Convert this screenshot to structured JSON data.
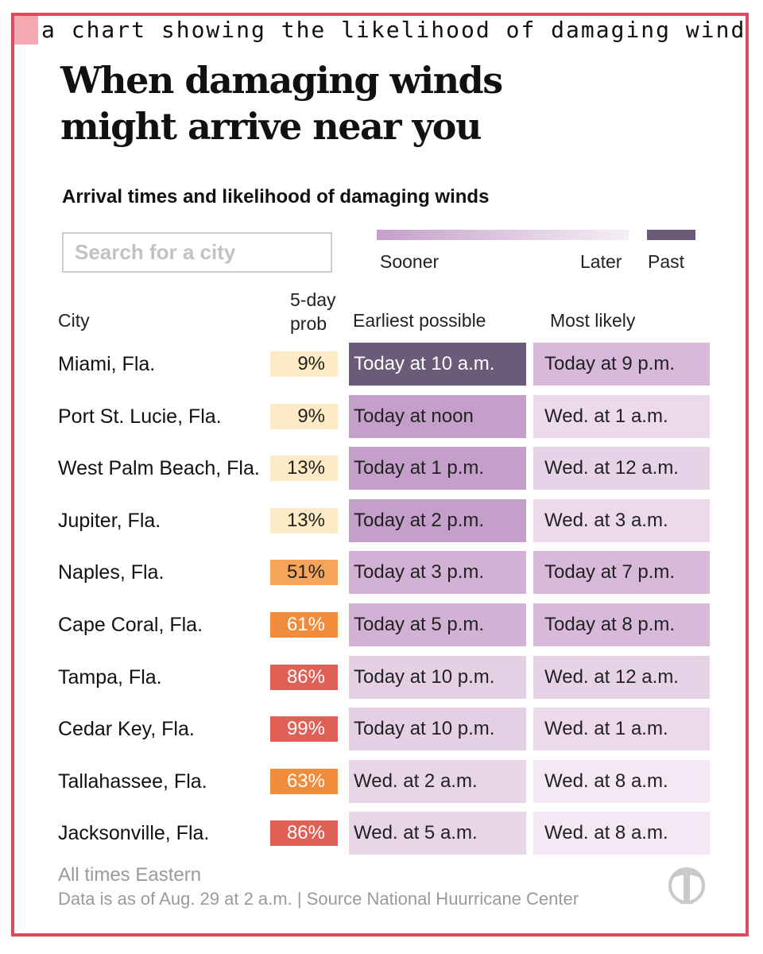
{
  "caption": "a chart showing the likelihood of damaging winds fo",
  "title": "When damaging winds might arrive near you",
  "subtitle": "Arrival times and likelihood of damaging winds",
  "search": {
    "placeholder": "Search for a city"
  },
  "legend": {
    "sooner": "Sooner",
    "later": "Later",
    "past": "Past"
  },
  "colors": {
    "frame": "#e04a5c",
    "past": "#6b5a78",
    "gradient_start": "#c5a0ca",
    "gradient_end": "#f6eef6"
  },
  "columns": {
    "city": "City",
    "prob_line1": "5-day",
    "prob_line2": "prob",
    "earliest": "Earliest possible",
    "likely": "Most likely"
  },
  "rows": [
    {
      "city": "Miami, Fla.",
      "prob": "9%",
      "prob_bg": "#fcebc4",
      "prob_fg": "#222222",
      "earliest": "Today at 10 a.m.",
      "earliest_bg": "#6b5a78",
      "earliest_fg": "#ffffff",
      "likely": "Today at 9 p.m.",
      "likely_bg": "#d8b9da"
    },
    {
      "city": "Port St. Lucie, Fla.",
      "prob": "9%",
      "prob_bg": "#fcebc4",
      "prob_fg": "#222222",
      "earliest": "Today at noon",
      "earliest_bg": "#c49fc9",
      "earliest_fg": "#222222",
      "likely": "Wed. at 1 a.m.",
      "likely_bg": "#ecdaec"
    },
    {
      "city": "West Palm Beach, Fla.",
      "prob": "13%",
      "prob_bg": "#fcebc4",
      "prob_fg": "#222222",
      "earliest": "Today at 1 p.m.",
      "earliest_bg": "#c49fc9",
      "earliest_fg": "#222222",
      "likely": "Wed. at 12 a.m.",
      "likely_bg": "#e7d3e8"
    },
    {
      "city": "Jupiter, Fla.",
      "prob": "13%",
      "prob_bg": "#fcebc4",
      "prob_fg": "#222222",
      "earliest": "Today at 2 p.m.",
      "earliest_bg": "#c49fc9",
      "earliest_fg": "#222222",
      "likely": "Wed. at 3 a.m.",
      "likely_bg": "#ecdaec"
    },
    {
      "city": "Naples, Fla.",
      "prob": "51%",
      "prob_bg": "#f5a55a",
      "prob_fg": "#222222",
      "earliest": "Today at 3 p.m.",
      "earliest_bg": "#d2b1d5",
      "earliest_fg": "#222222",
      "likely": "Today at 7 p.m.",
      "likely_bg": "#d8b9da"
    },
    {
      "city": "Cape Coral, Fla.",
      "prob": "61%",
      "prob_bg": "#f08c3c",
      "prob_fg": "#ffffff",
      "earliest": "Today at 5 p.m.",
      "earliest_bg": "#d2b1d5",
      "earliest_fg": "#222222",
      "likely": "Today at 8 p.m.",
      "likely_bg": "#d8b9da"
    },
    {
      "city": "Tampa, Fla.",
      "prob": "86%",
      "prob_bg": "#e06055",
      "prob_fg": "#ffffff",
      "earliest": "Today at 10 p.m.",
      "earliest_bg": "#e4cfe5",
      "earliest_fg": "#222222",
      "likely": "Wed. at 12 a.m.",
      "likely_bg": "#e7d3e8"
    },
    {
      "city": "Cedar Key, Fla.",
      "prob": "99%",
      "prob_bg": "#e06055",
      "prob_fg": "#ffffff",
      "earliest": "Today at 10 p.m.",
      "earliest_bg": "#e4cfe5",
      "earliest_fg": "#222222",
      "likely": "Wed. at 1 a.m.",
      "likely_bg": "#ecdaec"
    },
    {
      "city": "Tallahassee, Fla.",
      "prob": "63%",
      "prob_bg": "#f08c3c",
      "prob_fg": "#ffffff",
      "earliest": "Wed. at 2 a.m.",
      "earliest_bg": "#e8d6e8",
      "earliest_fg": "#222222",
      "likely": "Wed. at 8 a.m.",
      "likely_bg": "#f3e8f3"
    },
    {
      "city": "Jacksonville, Fla.",
      "prob": "86%",
      "prob_bg": "#e06055",
      "prob_fg": "#ffffff",
      "earliest": "Wed. at 5 a.m.",
      "earliest_bg": "#e8d6e8",
      "earliest_fg": "#222222",
      "likely": "Wed. at 8 a.m.",
      "likely_bg": "#f3e8f3"
    }
  ],
  "footer": {
    "note": "All times Eastern",
    "source": "Data is as of Aug. 29 at 2 a.m. | Source National Huurricane Center"
  },
  "logo_icon": "nyt-t-logo-icon",
  "chart_data": {
    "type": "table",
    "title": "When damaging winds might arrive near you",
    "subtitle": "Arrival times and likelihood of damaging winds",
    "columns": [
      "City",
      "5-day prob",
      "Earliest possible",
      "Most likely"
    ],
    "rows": [
      [
        "Miami, Fla.",
        "9%",
        "Today at 10 a.m.",
        "Today at 9 p.m."
      ],
      [
        "Port St. Lucie, Fla.",
        "9%",
        "Today at noon",
        "Wed. at 1 a.m."
      ],
      [
        "West Palm Beach, Fla.",
        "13%",
        "Today at 1 p.m.",
        "Wed. at 12 a.m."
      ],
      [
        "Jupiter, Fla.",
        "13%",
        "Today at 2 p.m.",
        "Wed. at 3 a.m."
      ],
      [
        "Naples, Fla.",
        "51%",
        "Today at 3 p.m.",
        "Today at 7 p.m."
      ],
      [
        "Cape Coral, Fla.",
        "61%",
        "Today at 5 p.m.",
        "Today at 8 p.m."
      ],
      [
        "Tampa, Fla.",
        "86%",
        "Today at 10 p.m.",
        "Wed. at 12 a.m."
      ],
      [
        "Cedar Key, Fla.",
        "99%",
        "Today at 10 p.m.",
        "Wed. at 1 a.m."
      ],
      [
        "Tallahassee, Fla.",
        "63%",
        "Wed. at 2 a.m.",
        "Wed. at 8 a.m."
      ],
      [
        "Jacksonville, Fla.",
        "86%",
        "Wed. at 5 a.m.",
        "Wed. at 8 a.m."
      ]
    ]
  }
}
